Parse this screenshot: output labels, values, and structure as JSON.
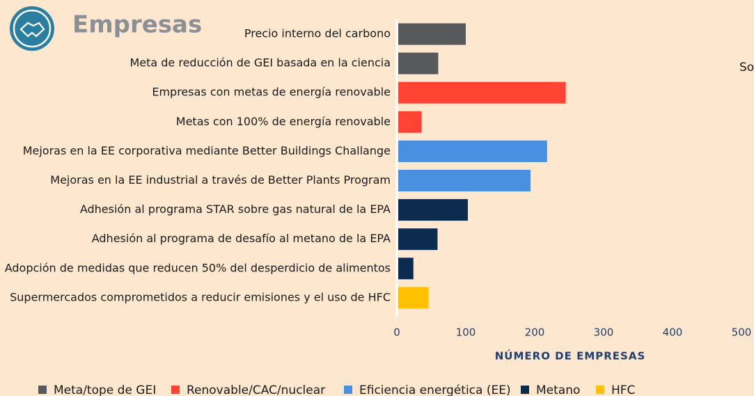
{
  "chart_data": {
    "type": "bar",
    "orientation": "horizontal",
    "title": "Empresas",
    "side_text": "So",
    "categories": [
      "Precio interno del carbono",
      "Meta de reducción de GEI basada en la ciencia",
      "Empresas con metas de energía renovable",
      "Metas con 100% de energía renovable",
      "Mejoras en la EE corporativa mediante Better Buildings Challange",
      "Mejoras en la EE industrial a través de Better Plants Program",
      "Adhesión al programa STAR sobre gas natural de la EPA",
      "Adhesión al programa de desafío al metano de la EPA",
      "Adopción de medidas que reducen 50% del desperdicio de alimentos",
      "Supermercados comprometidos a reducir emisiones y el uso de HFC"
    ],
    "series": [
      {
        "name": "Meta/tope de GEI",
        "color": "#58595b",
        "values": [
          98,
          58,
          null,
          null,
          null,
          null,
          null,
          null,
          null,
          null
        ]
      },
      {
        "name": "Renovable/CAC/nuclear",
        "color": "#ff4433",
        "values": [
          null,
          null,
          243,
          34,
          null,
          null,
          null,
          null,
          null,
          null
        ]
      },
      {
        "name": "Eficiencia energética (EE)",
        "color": "#4a90e0",
        "values": [
          null,
          null,
          null,
          null,
          216,
          192,
          null,
          null,
          null,
          null
        ]
      },
      {
        "name": "Metano",
        "color": "#0d2a4f",
        "values": [
          null,
          null,
          null,
          null,
          null,
          null,
          101,
          57,
          22,
          null
        ]
      },
      {
        "name": "HFC",
        "color": "#ffc000",
        "values": [
          null,
          null,
          null,
          null,
          null,
          null,
          null,
          null,
          null,
          44
        ]
      }
    ],
    "xlabel": "NÚMERO DE EMPRESAS",
    "xlim": [
      0,
      500
    ],
    "xticks": [
      0,
      100,
      200,
      300,
      400,
      500
    ],
    "grid": false,
    "legend": "bottom"
  }
}
